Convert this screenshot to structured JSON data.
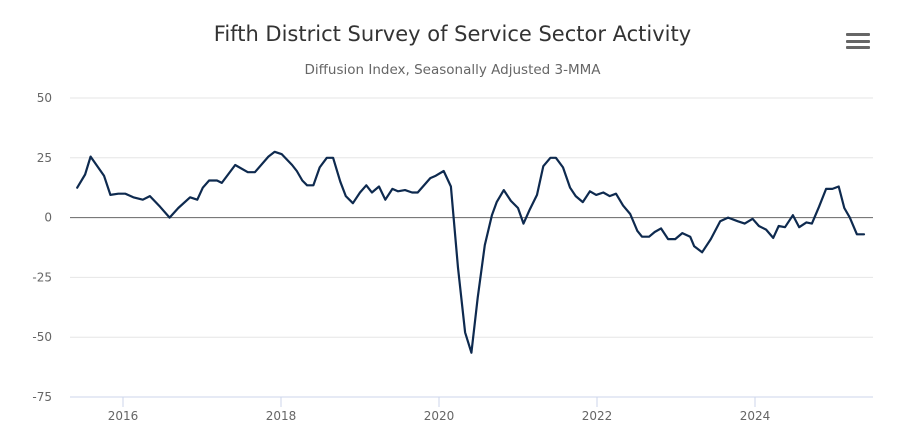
{
  "chart_data": {
    "type": "line",
    "title": "Fifth District Survey of Service Sector Activity",
    "subtitle": "Diffusion Index, Seasonally Adjusted 3-MMA",
    "xlabel": "",
    "ylabel": "",
    "ylim": [
      -75,
      50
    ],
    "xlim": [
      2015.3,
      2025.5
    ],
    "yticks": [
      "50",
      "25",
      "0",
      "-25",
      "-50",
      "-75"
    ],
    "ytick_values": [
      50,
      25,
      0,
      -25,
      -50,
      -75
    ],
    "xticks": [
      "2016",
      "2018",
      "2020",
      "2022",
      "2024"
    ],
    "xtick_values": [
      2016,
      2018,
      2020,
      2022,
      2024
    ],
    "grid": true,
    "legend": "none",
    "series": [
      {
        "name": "Service Sector Activity",
        "color": "#0e2a4f",
        "x": [
          2015.42,
          2015.52,
          2015.59,
          2015.76,
          2015.84,
          2015.94,
          2016.03,
          2016.13,
          2016.25,
          2016.34,
          2016.47,
          2016.59,
          2016.7,
          2016.85,
          2016.94,
          2017.01,
          2017.09,
          2017.19,
          2017.25,
          2017.42,
          2017.58,
          2017.67,
          2017.84,
          2017.92,
          2018.01,
          2018.14,
          2018.2,
          2018.27,
          2018.33,
          2018.41,
          2018.49,
          2018.58,
          2018.66,
          2018.75,
          2018.82,
          2018.91,
          2019.0,
          2019.08,
          2019.15,
          2019.24,
          2019.32,
          2019.41,
          2019.48,
          2019.57,
          2019.66,
          2019.73,
          2019.89,
          2019.96,
          2020.06,
          2020.15,
          2020.24,
          2020.33,
          2020.41,
          2020.49,
          2020.58,
          2020.67,
          2020.73,
          2020.82,
          2020.91,
          2021.0,
          2021.07,
          2021.15,
          2021.24,
          2021.32,
          2021.41,
          2021.48,
          2021.57,
          2021.66,
          2021.73,
          2021.82,
          2021.91,
          2021.99,
          2022.08,
          2022.16,
          2022.24,
          2022.33,
          2022.42,
          2022.51,
          2022.57,
          2022.66,
          2022.73,
          2022.81,
          2022.9,
          2022.99,
          2023.08,
          2023.18,
          2023.23,
          2023.33,
          2023.44,
          2023.56,
          2023.66,
          2023.78,
          2023.87,
          2023.97,
          2024.05,
          2024.14,
          2024.23,
          2024.3,
          2024.38,
          2024.48,
          2024.56,
          2024.65,
          2024.72,
          2024.81,
          2024.9,
          2024.98,
          2025.06,
          2025.13,
          2025.2,
          2025.29,
          2025.38
        ],
        "values": [
          12.5,
          18,
          25.5,
          17.5,
          9.5,
          10,
          10,
          8.5,
          7.5,
          9,
          4.5,
          0,
          4,
          8.5,
          7.5,
          12.5,
          15.5,
          15.5,
          14.5,
          22,
          19,
          19,
          25.5,
          27.5,
          26.5,
          22,
          19.5,
          15.5,
          13.5,
          13.5,
          21,
          25,
          25,
          15,
          9,
          6,
          10.5,
          13.5,
          10.5,
          13,
          7.5,
          12,
          11,
          11.5,
          10.5,
          10.5,
          16.5,
          17.5,
          19.5,
          13,
          -21,
          -48,
          -56.5,
          -33.5,
          -11.5,
          1,
          6.5,
          11.5,
          7,
          4,
          -2.5,
          3.5,
          9.5,
          21.5,
          25,
          25,
          21,
          12.5,
          9,
          6.5,
          11,
          9.5,
          10.5,
          9,
          10,
          5,
          1.5,
          -5.5,
          -8,
          -8,
          -6,
          -4.5,
          -9,
          -9,
          -6.5,
          -8,
          -12,
          -14.5,
          -9,
          -1.5,
          0,
          -1.5,
          -2.5,
          -0.5,
          -3.5,
          -5,
          -8.5,
          -3.5,
          -4,
          1,
          -4,
          -2,
          -2.5,
          4.5,
          12,
          12,
          13,
          4,
          0,
          -7,
          -7
        ]
      }
    ]
  },
  "header": {
    "title": "Fifth District Survey of Service Sector Activity",
    "subtitle": "Diffusion Index, Seasonally Adjusted 3-MMA",
    "menu_icon": "hamburger-menu-icon"
  },
  "colors": {
    "line": "#0e2a4f",
    "grid": "#e6e6e6",
    "zero_line": "#666666",
    "axis": "#ccd6eb",
    "text": "#666666",
    "title": "#333333"
  }
}
